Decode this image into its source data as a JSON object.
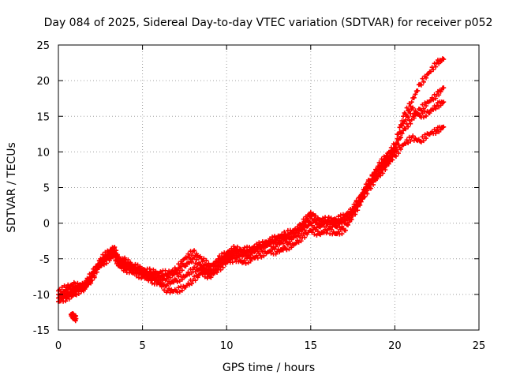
{
  "chart_data": {
    "type": "scatter",
    "title": "Day 084 of 2025, Sidereal Day-to-day VTEC variation (SDTVAR) for receiver p052",
    "xlabel": "GPS time / hours",
    "ylabel": "SDTVAR / TECUs",
    "xlim": [
      0,
      25
    ],
    "ylim": [
      -15,
      25
    ],
    "x_ticks": [
      0,
      5,
      10,
      15,
      20,
      25
    ],
    "y_ticks": [
      -15,
      -10,
      -5,
      0,
      5,
      10,
      15,
      20,
      25
    ],
    "x_tick_labels": [
      "0",
      "5",
      "10",
      "15",
      "20",
      "25"
    ],
    "y_tick_labels": [
      "-15",
      "-10",
      "-5",
      "0",
      "5",
      "10",
      "15",
      "20",
      "25"
    ],
    "grid": true,
    "marker": "plus",
    "color": "#ff0000",
    "series": [
      {
        "x": [
          0.0,
          0.5,
          1.0,
          1.5,
          2.0,
          2.5,
          3.0,
          3.3,
          3.6,
          4.0,
          4.5,
          5.0,
          5.5,
          6.0,
          6.5,
          7.0,
          7.5,
          8.0,
          8.5,
          9.0,
          9.5,
          10.0,
          10.5,
          11.0,
          11.5,
          12.0,
          12.5,
          13.0,
          13.5,
          14.0,
          14.5,
          15.0,
          15.5,
          16.0,
          16.5,
          17.0,
          17.5,
          18.0,
          18.5,
          19.0,
          19.5,
          20.0,
          20.5,
          21.0,
          21.5,
          22.0,
          22.5,
          22.9
        ],
        "y": [
          -9.5,
          -9.0,
          -8.5,
          -9.5,
          -7.5,
          -5.0,
          -4.0,
          -3.5,
          -5.0,
          -5.5,
          -6.0,
          -6.5,
          -6.8,
          -7.0,
          -7.0,
          -6.5,
          -5.0,
          -4.0,
          -5.0,
          -6.0,
          -5.5,
          -4.5,
          -4.0,
          -3.8,
          -3.5,
          -3.0,
          -2.5,
          -2.0,
          -1.5,
          -1.0,
          -0.5,
          1.0,
          0.5,
          0.5,
          0.5,
          1.0,
          2.0,
          4.0,
          6.0,
          8.0,
          9.5,
          11.0,
          15.0,
          17.0,
          19.5,
          21.0,
          22.5,
          23.0
        ]
      },
      {
        "x": [
          0.0,
          0.5,
          1.0,
          1.5,
          2.0,
          2.5,
          3.0,
          3.3,
          3.6,
          4.0,
          4.5,
          5.0,
          5.5,
          6.0,
          6.5,
          7.0,
          7.5,
          8.0,
          8.5,
          9.0,
          9.5,
          10.0,
          10.5,
          11.0,
          11.5,
          12.0,
          12.5,
          13.0,
          13.5,
          14.0,
          14.5,
          15.0,
          15.5,
          16.0,
          16.5,
          17.0,
          17.5,
          18.0,
          18.5,
          19.0,
          19.5,
          20.0,
          20.5,
          21.0,
          21.5,
          22.0,
          22.5,
          22.9
        ],
        "y": [
          -10.5,
          -10.0,
          -9.5,
          -8.5,
          -7.0,
          -5.5,
          -4.5,
          -4.0,
          -5.5,
          -6.0,
          -6.5,
          -7.0,
          -7.5,
          -8.0,
          -8.5,
          -8.0,
          -7.5,
          -6.5,
          -6.5,
          -7.0,
          -6.0,
          -5.0,
          -4.5,
          -4.5,
          -4.0,
          -3.5,
          -3.0,
          -3.0,
          -2.5,
          -2.0,
          -1.0,
          0.0,
          -0.5,
          0.0,
          -0.5,
          0.0,
          1.5,
          3.5,
          5.5,
          7.0,
          8.5,
          10.0,
          13.0,
          14.5,
          16.0,
          17.0,
          18.0,
          19.0
        ]
      },
      {
        "x": [
          0.0,
          0.5,
          1.0,
          1.5,
          2.0,
          2.5,
          3.0,
          3.3,
          3.6,
          4.0,
          4.5,
          5.0,
          5.5,
          6.0,
          6.5,
          7.0,
          7.5,
          8.0,
          8.5,
          9.0,
          9.5,
          10.0,
          10.5,
          11.0,
          11.5,
          12.0,
          12.5,
          13.0,
          13.5,
          14.0,
          14.5,
          15.0,
          15.5,
          16.0,
          16.5,
          17.0,
          17.5,
          18.0,
          18.5,
          19.0,
          19.5,
          20.0,
          20.5,
          21.0,
          21.5,
          22.0,
          22.5,
          22.9
        ],
        "y": [
          -11.0,
          -10.5,
          -10.0,
          -9.0,
          -7.5,
          -6.0,
          -5.0,
          -4.5,
          -6.0,
          -6.5,
          -7.0,
          -7.5,
          -8.0,
          -8.5,
          -9.5,
          -9.5,
          -9.0,
          -8.0,
          -7.0,
          -7.5,
          -6.5,
          -5.5,
          -5.0,
          -5.5,
          -5.0,
          -4.5,
          -4.0,
          -4.0,
          -3.5,
          -3.0,
          -2.0,
          -1.0,
          -1.5,
          -1.0,
          -1.5,
          -1.0,
          1.0,
          3.0,
          5.0,
          6.5,
          8.0,
          9.5,
          11.0,
          12.0,
          11.5,
          12.5,
          13.0,
          13.5
        ]
      },
      {
        "x": [
          0.0,
          0.5,
          1.0,
          1.5,
          2.0,
          2.5,
          3.0,
          3.3,
          3.6,
          4.0,
          4.5,
          5.0,
          5.5,
          6.0,
          6.5,
          7.0,
          7.5,
          8.0,
          8.5,
          9.0,
          9.5,
          10.0,
          10.5,
          11.0,
          11.5,
          12.0,
          12.5,
          13.0,
          13.5,
          14.0,
          14.5,
          15.0,
          15.5,
          16.0,
          16.5,
          17.0,
          17.5,
          18.0,
          18.5,
          19.0,
          19.5,
          20.0,
          20.5,
          21.0,
          21.5,
          22.0,
          22.5,
          22.9
        ],
        "y": [
          -10.0,
          -9.8,
          -9.0,
          -9.0,
          -8.0,
          -5.5,
          -4.5,
          -4.2,
          -5.2,
          -5.2,
          -6.2,
          -6.8,
          -7.2,
          -7.5,
          -7.5,
          -7.0,
          -6.0,
          -5.0,
          -6.0,
          -6.5,
          -5.0,
          -4.2,
          -3.5,
          -4.0,
          -4.2,
          -3.2,
          -2.8,
          -2.2,
          -2.0,
          -1.5,
          0.0,
          1.5,
          0.0,
          0.2,
          0.0,
          0.5,
          1.8,
          3.8,
          5.8,
          7.5,
          9.0,
          10.5,
          14.0,
          16.0,
          15.0,
          15.5,
          16.5,
          17.0
        ]
      },
      {
        "x": [
          0.75,
          0.85,
          0.95,
          1.05
        ],
        "y": [
          -12.8,
          -13.0,
          -13.2,
          -13.4
        ]
      }
    ]
  }
}
